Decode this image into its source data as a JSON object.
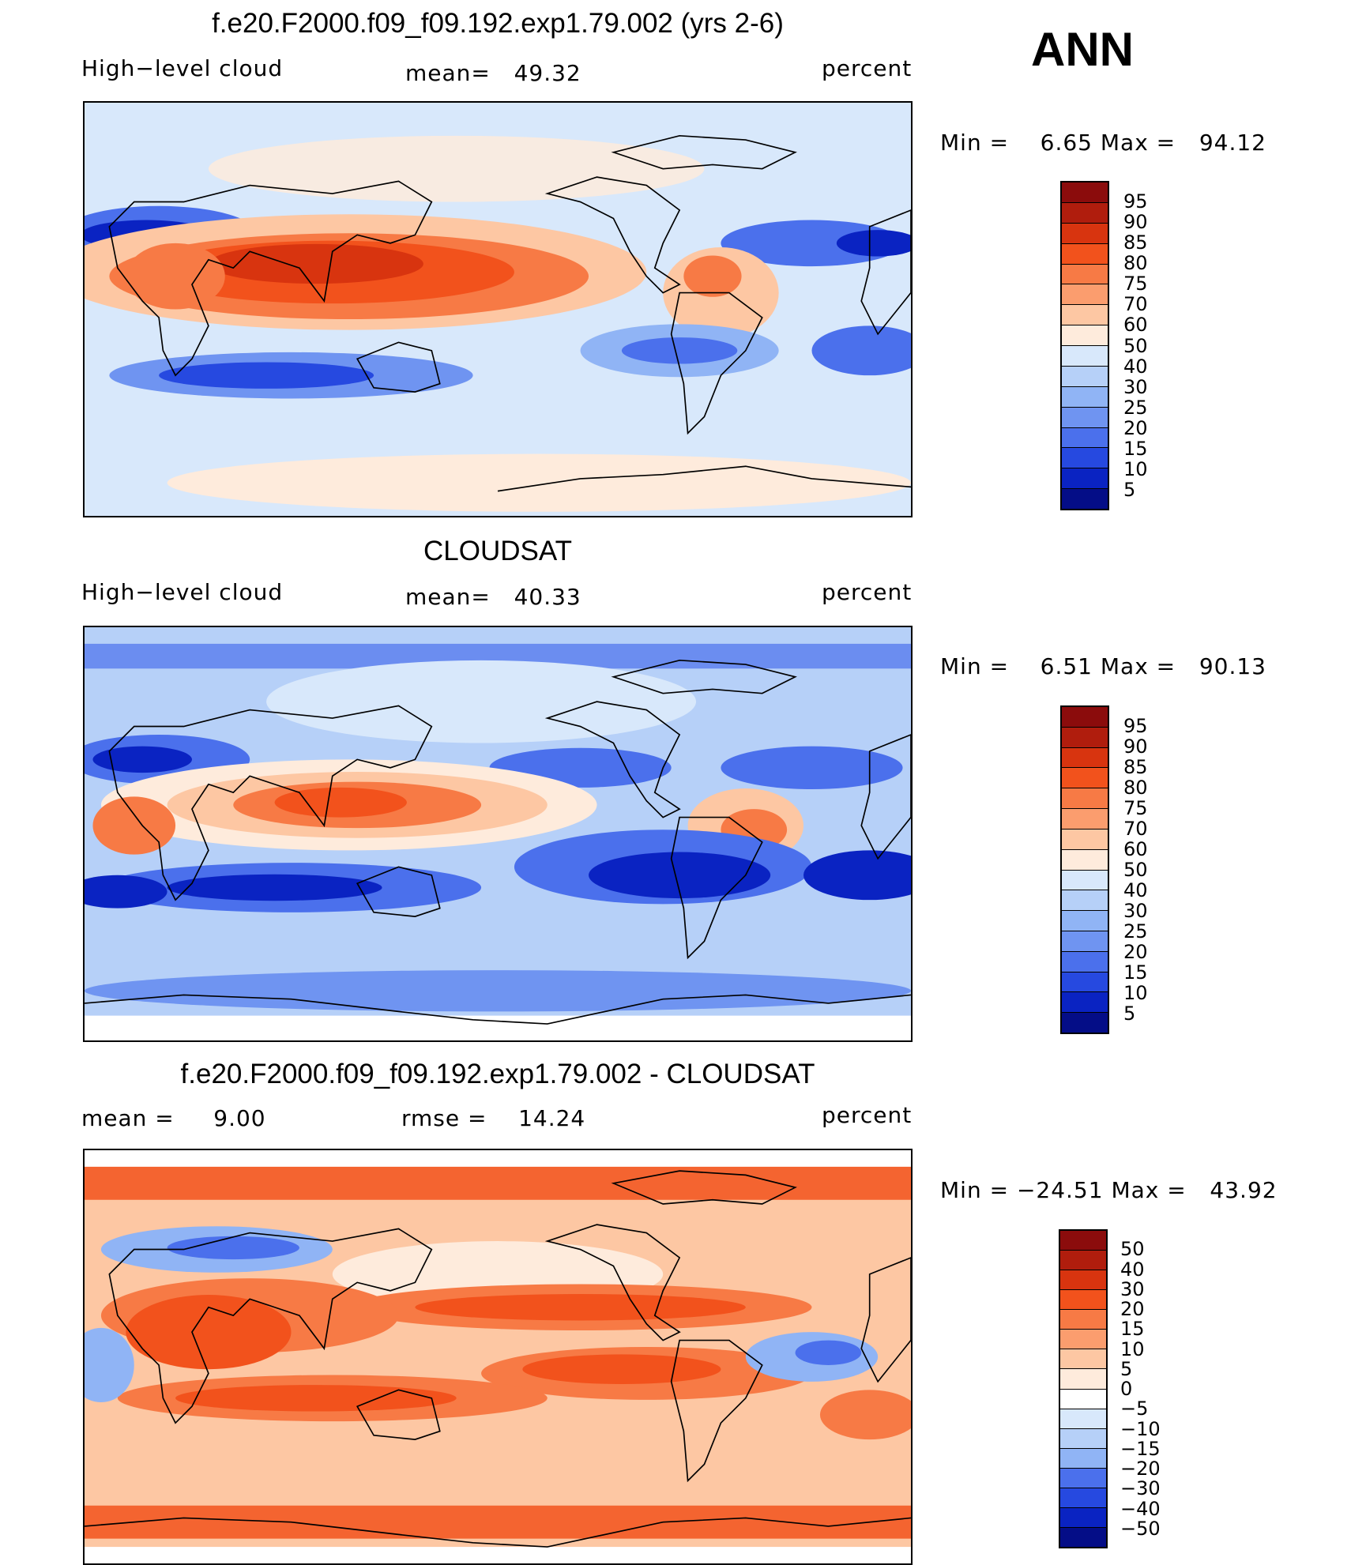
{
  "season": "ANN",
  "panels": [
    {
      "id": "model",
      "title": "f.e20.F2000.f09_f09.192.exp1.79.002 (yrs 2-6)",
      "left_label": "High−level cloud",
      "center_label": "mean=   49.32",
      "right_label": "percent",
      "minmax": "Min =    6.65 Max =   94.12",
      "field": "high-level cloud fraction",
      "colorbar": {
        "labels": [
          "95",
          "90",
          "85",
          "80",
          "75",
          "70",
          "60",
          "50",
          "40",
          "30",
          "25",
          "20",
          "15",
          "10",
          "5"
        ],
        "colors": [
          "#8b0c0c",
          "#b01d0d",
          "#d8340f",
          "#f2521c",
          "#f77a45",
          "#fb9d6e",
          "#fdc7a3",
          "#feebdc",
          "#d8e8fb",
          "#b6d0f8",
          "#90b4f5",
          "#6f94f1",
          "#4b70ec",
          "#2649e0",
          "#0a23c2",
          "#040d87"
        ]
      }
    },
    {
      "id": "obs",
      "title": "CLOUDSAT",
      "left_label": "High−level cloud",
      "center_label": "mean=   40.33",
      "right_label": "percent",
      "minmax": "Min =    6.51 Max =   90.13",
      "field": "high-level cloud fraction",
      "colorbar": {
        "labels": [
          "95",
          "90",
          "85",
          "80",
          "75",
          "70",
          "60",
          "50",
          "40",
          "30",
          "25",
          "20",
          "15",
          "10",
          "5"
        ],
        "colors": [
          "#8b0c0c",
          "#b01d0d",
          "#d8340f",
          "#f2521c",
          "#f77a45",
          "#fb9d6e",
          "#fdc7a3",
          "#feebdc",
          "#d8e8fb",
          "#b6d0f8",
          "#90b4f5",
          "#6f94f1",
          "#4b70ec",
          "#2649e0",
          "#0a23c2",
          "#040d87"
        ]
      }
    },
    {
      "id": "diff",
      "title": "f.e20.F2000.f09_f09.192.exp1.79.002 - CLOUDSAT",
      "left_label": "mean =     9.00",
      "center_label": "rmse =    14.24",
      "right_label": "percent",
      "minmax": "Min = −24.51 Max =   43.92",
      "field": "difference",
      "colorbar": {
        "labels": [
          "50",
          "40",
          "30",
          "20",
          "15",
          "10",
          "5",
          "0",
          "−5",
          "−10",
          "−15",
          "−20",
          "−30",
          "−40",
          "−50"
        ],
        "colors": [
          "#8b0c0c",
          "#b01d0d",
          "#d8340f",
          "#f2521c",
          "#f77a45",
          "#fb9d6e",
          "#fdc7a3",
          "#feebdc",
          "#ffffff",
          "#d8e8fb",
          "#b6d0f8",
          "#90b4f5",
          "#4b70ec",
          "#2649e0",
          "#0a23c2",
          "#040d87"
        ]
      }
    }
  ]
}
